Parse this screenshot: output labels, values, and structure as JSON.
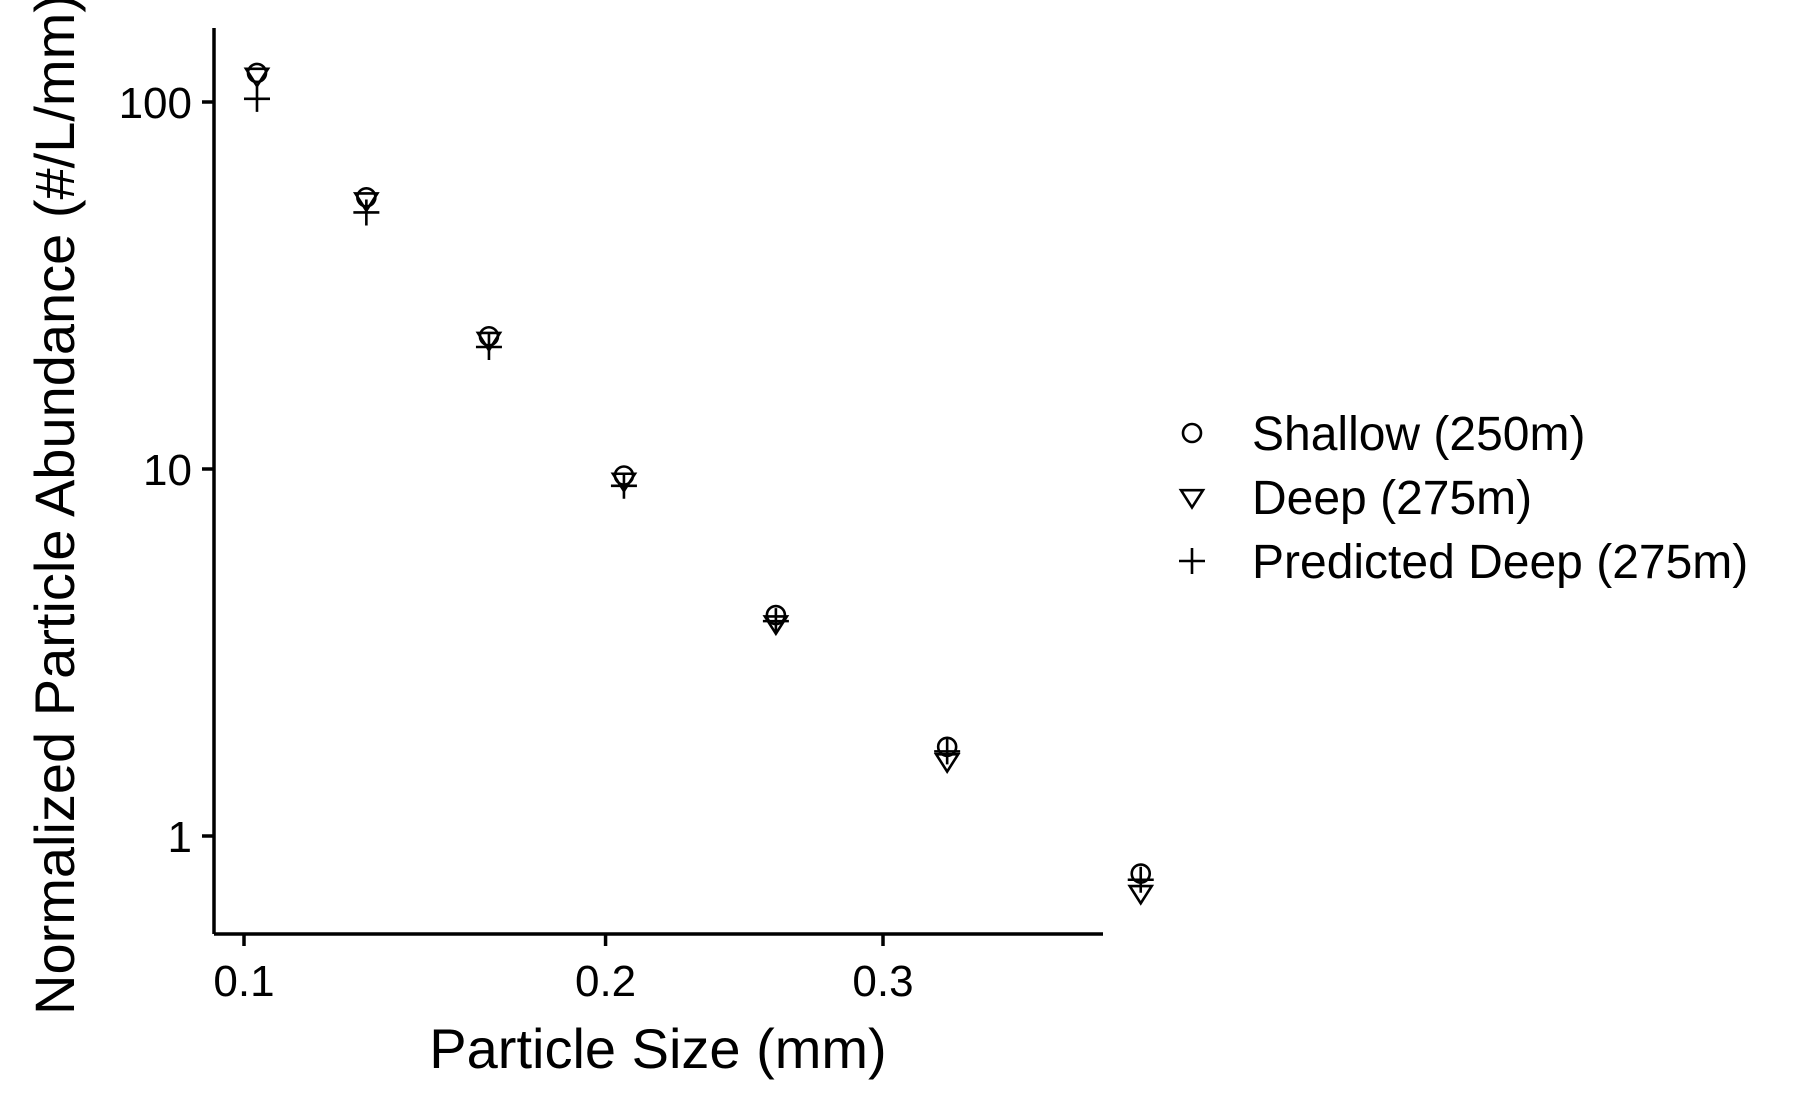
{
  "chart_data": {
    "type": "scatter",
    "xlabel": "Particle Size (mm)",
    "ylabel": "Normalized Particle Abundance (#/L/mm)",
    "x_scale": "sqrt",
    "y_scale": "log",
    "xlim": [
      0.092,
      0.43
    ],
    "ylim": [
      0.54,
      165
    ],
    "x_ticks": [
      {
        "value": 0.1,
        "label": "0.1"
      },
      {
        "value": 0.2,
        "label": "0.2"
      },
      {
        "value": 0.3,
        "label": "0.3"
      }
    ],
    "y_ticks": [
      {
        "value": 1,
        "label": "1"
      },
      {
        "value": 10,
        "label": "10"
      },
      {
        "value": 100,
        "label": "100"
      }
    ],
    "grid": false,
    "legend_position": "right",
    "series": [
      {
        "name": "Shallow (250m)",
        "marker": "circle",
        "points": [
          {
            "x": 0.103,
            "y": 120
          },
          {
            "x": 0.13,
            "y": 55
          },
          {
            "x": 0.164,
            "y": 23
          },
          {
            "x": 0.206,
            "y": 9.6
          },
          {
            "x": 0.259,
            "y": 4.0
          },
          {
            "x": 0.326,
            "y": 1.75
          },
          {
            "x": 0.411,
            "y": 0.79
          }
        ]
      },
      {
        "name": "Deep (275m)",
        "marker": "triangle-down",
        "points": [
          {
            "x": 0.103,
            "y": 118
          },
          {
            "x": 0.13,
            "y": 54
          },
          {
            "x": 0.164,
            "y": 22.5
          },
          {
            "x": 0.206,
            "y": 9.3
          },
          {
            "x": 0.259,
            "y": 3.8
          },
          {
            "x": 0.326,
            "y": 1.6
          },
          {
            "x": 0.411,
            "y": 0.7
          }
        ]
      },
      {
        "name": "Predicted Deep (275m)",
        "marker": "plus",
        "points": [
          {
            "x": 0.103,
            "y": 102
          },
          {
            "x": 0.13,
            "y": 50
          },
          {
            "x": 0.164,
            "y": 21.5
          },
          {
            "x": 0.206,
            "y": 9.0
          },
          {
            "x": 0.259,
            "y": 3.85
          },
          {
            "x": 0.326,
            "y": 1.7
          },
          {
            "x": 0.411,
            "y": 0.76
          }
        ]
      }
    ]
  }
}
